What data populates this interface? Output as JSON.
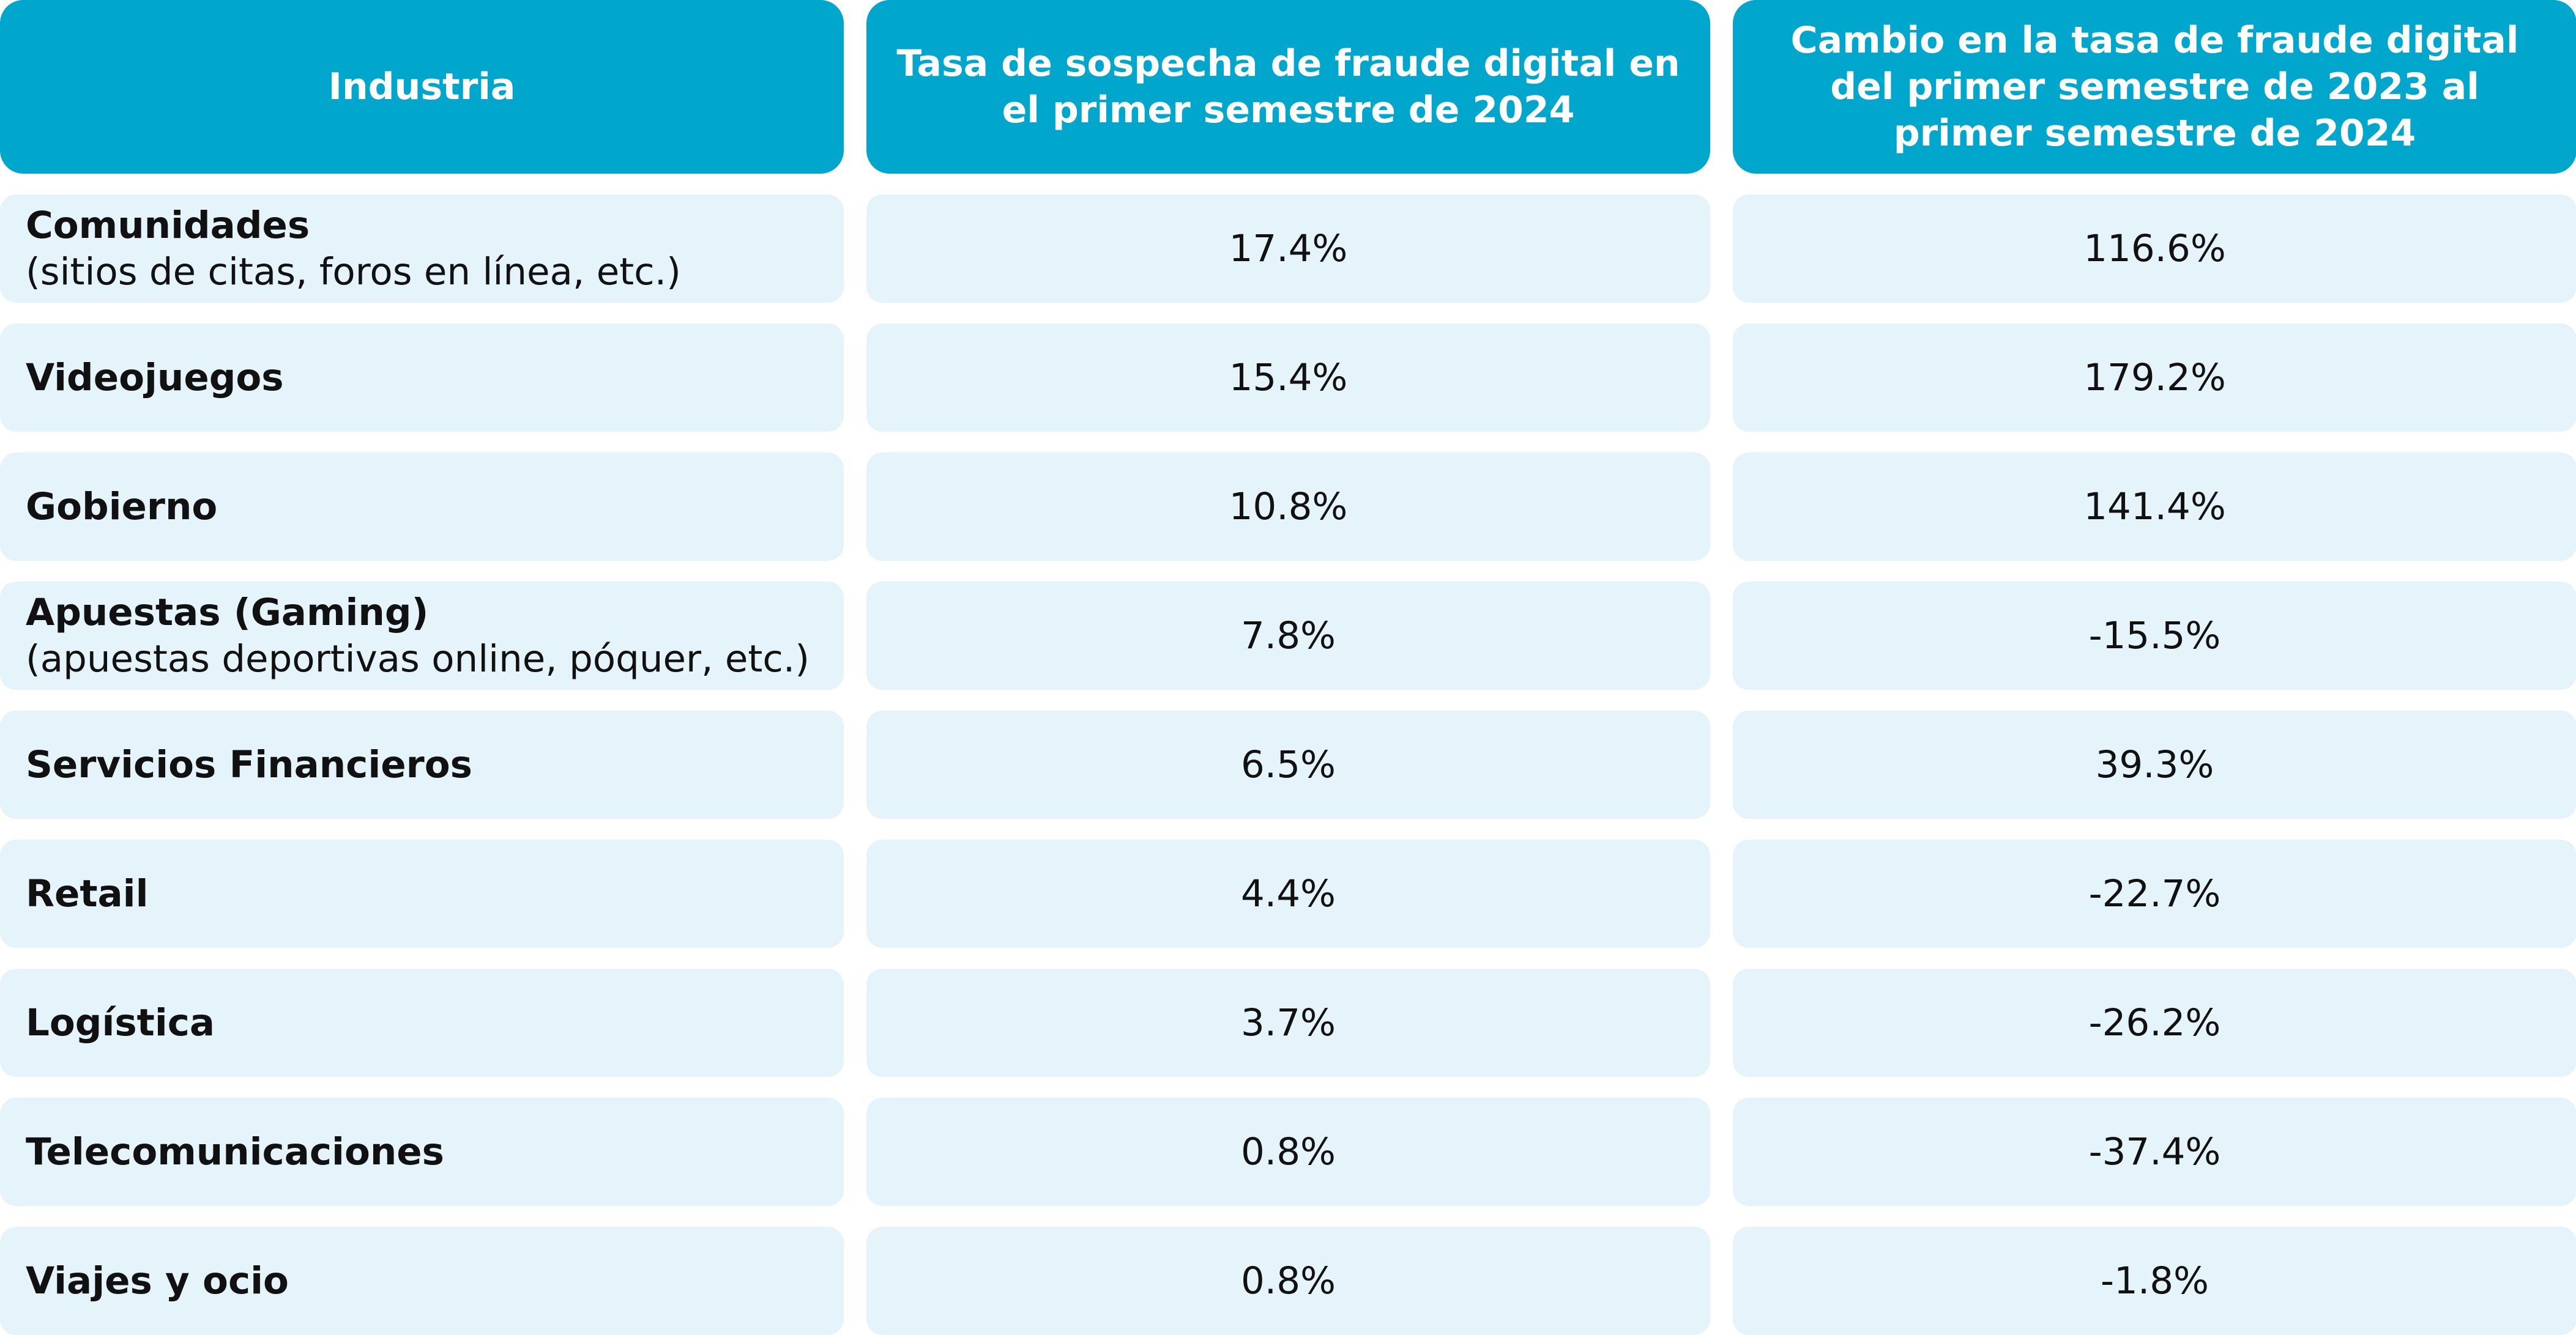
{
  "headers": [
    "Industria",
    "Tasa de sospecha de fraude digital en el primer semestre de 2024",
    "Cambio en la tasa de fraude digital del primer semestre de 2023 al primer semestre de 2024"
  ],
  "rows": [
    {
      "name": "Comunidades",
      "sub": "(sitios de citas, foros en línea, etc.)",
      "rate": "17.4%",
      "change": "116.6%"
    },
    {
      "name": "Videojuegos",
      "sub": "",
      "rate": "15.4%",
      "change": "179.2%"
    },
    {
      "name": "Gobierno",
      "sub": "",
      "rate": "10.8%",
      "change": "141.4%"
    },
    {
      "name": "Apuestas (Gaming)",
      "sub": "(apuestas deportivas online, póquer, etc.)",
      "rate": "7.8%",
      "change": "-15.5%"
    },
    {
      "name": "Servicios Financieros",
      "sub": "",
      "rate": "6.5%",
      "change": "39.3%"
    },
    {
      "name": "Retail",
      "sub": "",
      "rate": "4.4%",
      "change": "-22.7%"
    },
    {
      "name": "Logística",
      "sub": "",
      "rate": "3.7%",
      "change": "-26.2%"
    },
    {
      "name": "Telecomunicaciones",
      "sub": "",
      "rate": "0.8%",
      "change": "-37.4%"
    },
    {
      "name": "Viajes y ocio",
      "sub": "",
      "rate": "0.8%",
      "change": "-1.8%"
    }
  ],
  "colors": {
    "header_bg": "#00a6cb",
    "header_text": "#ffffff",
    "cell_bg": "#e4f4fa",
    "cell_text": "#111111"
  }
}
